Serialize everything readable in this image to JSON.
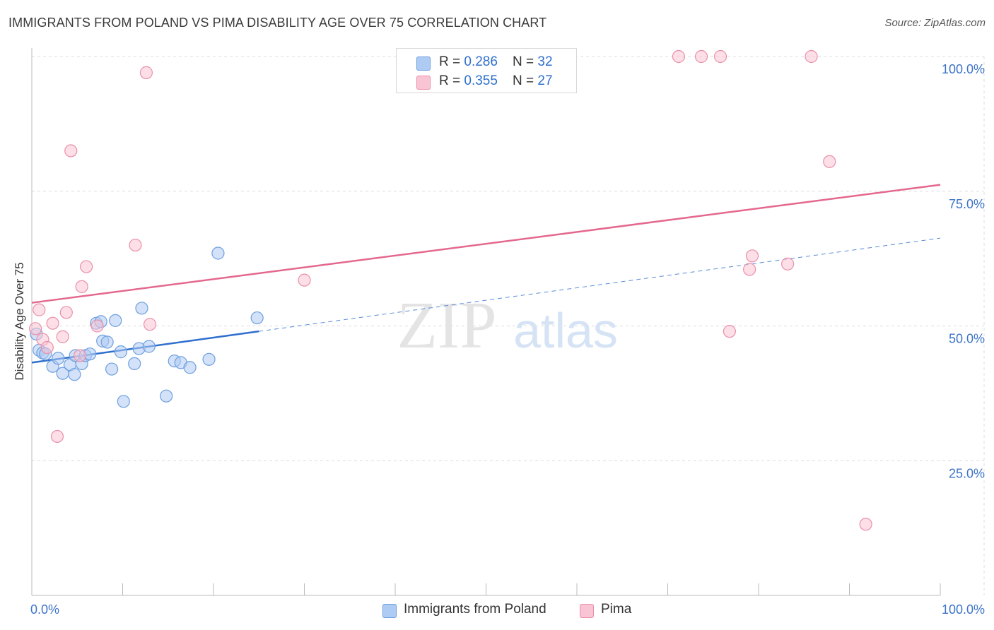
{
  "title": "IMMIGRANTS FROM POLAND VS PIMA DISABILITY AGE OVER 75 CORRELATION CHART",
  "source": "Source: ZipAtlas.com",
  "watermark": {
    "zip": "ZIP",
    "atlas": "atlas"
  },
  "legend": {
    "rows": [
      {
        "r_label": "R = ",
        "r_value": "0.286",
        "n_label": "N = ",
        "n_value": "32",
        "color": "#aecbf3",
        "border": "#6e9fe0"
      },
      {
        "r_label": "R = ",
        "r_value": "0.355",
        "n_label": "N = ",
        "n_value": "27",
        "color": "#f9c4d3",
        "border": "#ea8fa9"
      }
    ]
  },
  "bottom_legend": [
    {
      "label": "Immigrants from Poland",
      "color": "#aecbf3",
      "border": "#6e9fe0"
    },
    {
      "label": "Pima",
      "color": "#f9c4d3",
      "border": "#ea8fa9"
    }
  ],
  "chart_data": {
    "type": "scatter",
    "title": "IMMIGRANTS FROM POLAND VS PIMA DISABILITY AGE OVER 75 CORRELATION CHART",
    "xlabel": "",
    "ylabel": "Disability Age Over 75",
    "xlim": [
      0,
      100
    ],
    "ylim": [
      0,
      100
    ],
    "x_tick_labels": [
      "0.0%",
      "100.0%"
    ],
    "y_ticks": [
      25,
      50,
      75,
      100
    ],
    "y_tick_labels": [
      "25.0%",
      "50.0%",
      "75.0%",
      "100.0%"
    ],
    "grid": true,
    "legend_position": "top-center",
    "series": [
      {
        "name": "Immigrants from Poland",
        "color": "#6e9fe0",
        "fill": "#aecbf3",
        "points": [
          [
            0.5,
            48.5
          ],
          [
            0.8,
            45.5
          ],
          [
            1.2,
            45.0
          ],
          [
            1.5,
            44.8
          ],
          [
            2.3,
            42.5
          ],
          [
            2.9,
            44.0
          ],
          [
            3.4,
            41.2
          ],
          [
            4.2,
            42.8
          ],
          [
            4.8,
            44.5
          ],
          [
            4.7,
            41.0
          ],
          [
            5.5,
            43.0
          ],
          [
            5.9,
            44.5
          ],
          [
            6.4,
            44.8
          ],
          [
            7.1,
            50.5
          ],
          [
            7.6,
            50.8
          ],
          [
            7.8,
            47.2
          ],
          [
            8.3,
            47.0
          ],
          [
            8.8,
            42.0
          ],
          [
            9.2,
            51.0
          ],
          [
            9.8,
            45.2
          ],
          [
            10.1,
            36.0
          ],
          [
            11.3,
            43.0
          ],
          [
            11.8,
            45.8
          ],
          [
            12.1,
            53.3
          ],
          [
            12.9,
            46.2
          ],
          [
            14.8,
            37.0
          ],
          [
            15.7,
            43.5
          ],
          [
            16.4,
            43.2
          ],
          [
            17.4,
            42.3
          ],
          [
            19.5,
            43.8
          ],
          [
            20.5,
            63.5
          ],
          [
            24.8,
            51.5
          ]
        ]
      },
      {
        "name": "Pima",
        "color": "#ea8fa9",
        "fill": "#f9c4d3",
        "points": [
          [
            0.4,
            49.5
          ],
          [
            0.8,
            53.0
          ],
          [
            1.2,
            47.5
          ],
          [
            1.7,
            46.0
          ],
          [
            2.3,
            50.5
          ],
          [
            2.8,
            29.5
          ],
          [
            3.4,
            48.0
          ],
          [
            3.8,
            52.5
          ],
          [
            4.3,
            82.5
          ],
          [
            5.3,
            44.5
          ],
          [
            5.5,
            57.3
          ],
          [
            6.0,
            61.0
          ],
          [
            7.2,
            50.0
          ],
          [
            11.4,
            65.0
          ],
          [
            12.6,
            97.0
          ],
          [
            13.0,
            50.3
          ],
          [
            30.0,
            58.5
          ],
          [
            71.2,
            100.0
          ],
          [
            73.7,
            100.0
          ],
          [
            75.8,
            100.0
          ],
          [
            76.8,
            49.0
          ],
          [
            79.0,
            60.5
          ],
          [
            79.3,
            63.0
          ],
          [
            83.2,
            61.5
          ],
          [
            85.8,
            100.0
          ],
          [
            87.8,
            80.5
          ],
          [
            91.8,
            13.2
          ]
        ]
      }
    ],
    "trend_lines": [
      {
        "series": "Immigrants from Poland",
        "solid": [
          [
            0,
            43.2
          ],
          [
            25,
            49.0
          ]
        ],
        "dashed": [
          [
            25,
            49.0
          ],
          [
            100,
            66.3
          ]
        ],
        "color": "#2f6fce"
      },
      {
        "series": "Pima",
        "solid": [
          [
            0,
            54.3
          ],
          [
            100,
            76.2
          ]
        ],
        "color": "#e4688e"
      }
    ]
  }
}
